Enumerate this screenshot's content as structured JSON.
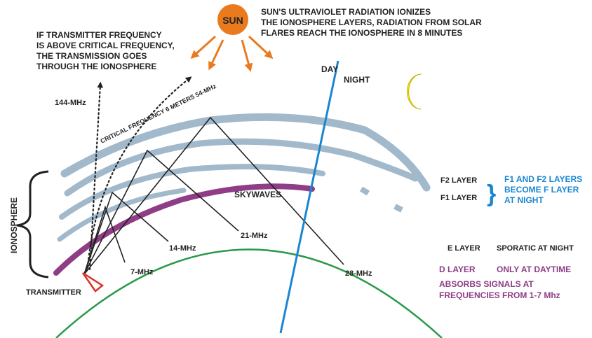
{
  "colors": {
    "layer": "#a2b9cb",
    "d_layer": "#8e3d86",
    "earth": "#2a9a4a",
    "day_night_line": "#1a86d2",
    "sun": "#ea7a1e",
    "moon": "#f1ec24",
    "text_dark": "#222222",
    "text_blue": "#1a86d2",
    "text_purple": "#8e3d86",
    "transmitter": "#d9342a"
  },
  "icons": {
    "sun": "sun-icon",
    "moon": "crescent-moon-icon"
  },
  "sun": {
    "label": "SUN",
    "caption": [
      "SUN'S ULTRAVIOLET RADIATION IONIZES",
      "THE IONOSPHERE LAYERS, RADIATION FROM SOLAR",
      "FLARES REACH THE IONOSPHERE IN 8 MINUTES"
    ]
  },
  "critical_note": [
    "IF TRANSMITTER FREQUENCY",
    "IS ABOVE CRITICAL FREQUENCY,",
    "THE TRANSMISSION GOES",
    "THROUGH THE IONOSPHERE"
  ],
  "labels": {
    "freq_144": "144-MHz",
    "critical": "CRITICAL FREQUENCY 6 METERS 54-MHz",
    "day": "DAY",
    "night": "NIGHT",
    "ionosphere": "IONOSPHERE",
    "skywaves": "SKYWAVES",
    "transmitter": "TRANSMITTER",
    "f7": "7-MHz",
    "f14": "14-MHz",
    "f21": "21-MHz",
    "f28": "28-MHz"
  },
  "legend": {
    "f2": "F2 LAYER",
    "f1": "F1 LAYER",
    "f_note": [
      "F1 AND F2 LAYERS",
      "BECOME F LAYER",
      "AT NIGHT"
    ],
    "e": "E LAYER",
    "e_note": "SPORATIC AT NIGHT",
    "d": "D LAYER",
    "d_note": "ONLY AT DAYTIME",
    "d_note2": [
      "ABSORBS SIGNALS AT",
      "FREQUENCIES FROM 1-7 Mhz"
    ]
  }
}
